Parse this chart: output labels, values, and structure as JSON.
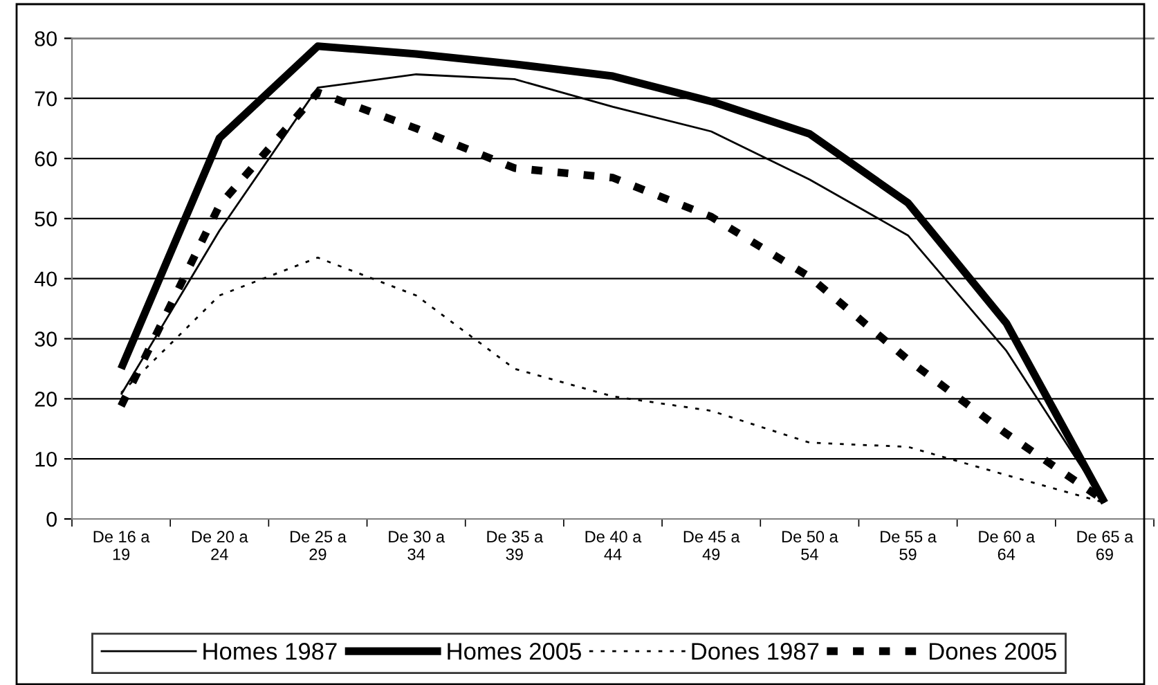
{
  "chart_data": {
    "type": "line",
    "categories": [
      "De 16 a\n19",
      "De 20 a\n24",
      "De 25 a\n29",
      "De 30 a\n34",
      "De 35 a\n39",
      "De 40 a\n44",
      "De 45 a\n49",
      "De 50 a\n54",
      "De 55 a\n59",
      "De 60 a\n64",
      "De 65 a\n69"
    ],
    "series": [
      {
        "name": "Homes 1987",
        "color": "#000000",
        "line_style": "solid",
        "values": [
          20.7,
          48,
          71.8,
          74,
          73.2,
          68.6,
          64.5,
          56.5,
          47.2,
          28,
          2.7
        ]
      },
      {
        "name": "Homes 2005",
        "color": "#000000",
        "line_style": "solid",
        "values": [
          25,
          63.4,
          78.7,
          77.4,
          75.7,
          73.7,
          69.5,
          64.1,
          52.6,
          32.6,
          2.7
        ]
      },
      {
        "name": "Dones 1987",
        "color": "#000000",
        "line_style": "dotted",
        "values": [
          21,
          37.2,
          43.5,
          37.2,
          25,
          20.4,
          18,
          12.7,
          12,
          7.3,
          2.7
        ]
      },
      {
        "name": "Dones 2005",
        "color": "#000000",
        "line_style": "dashed",
        "values": [
          18.8,
          52.2,
          71,
          65,
          58.4,
          56.8,
          50.3,
          40.3,
          26.5,
          14.2,
          3
        ]
      }
    ],
    "ylim": [
      0,
      80
    ],
    "yticks": [
      0,
      10,
      20,
      30,
      40,
      50,
      60,
      70,
      80
    ],
    "grid": "y",
    "legend": "bottom",
    "marker": "none"
  }
}
